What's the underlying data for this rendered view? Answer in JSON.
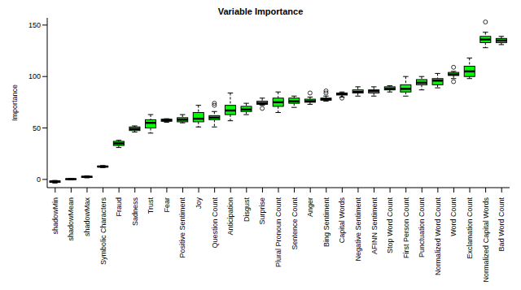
{
  "chart_data": {
    "type": "boxplot",
    "title": "Variable Importance",
    "y_label": "Importance",
    "categories": [
      "shadowMin",
      "shadowMean",
      "shadowMax",
      "Symbolic Characters",
      "Fraud",
      "Sadness",
      "Trust",
      "Fear",
      "Positive Sentiment",
      "Joy",
      "Question Count",
      "Anticipation",
      "Disgust",
      "Surprise",
      "Plural Pronoun Count",
      "Sentence Count",
      "Anger",
      "Bing Sentiment",
      "Capital Words",
      "Negative Sentiment",
      "AFINN Sentiment",
      "Stop Word Count",
      "First Person Count",
      "Punctuation Count",
      "Normalized Word Count",
      "Word Count",
      "Exclamation Count",
      "Normalized Capital Words",
      "Bad Word Count"
    ],
    "boxes": [
      {
        "min": -3.5,
        "q1": -2.8,
        "median": -2,
        "q3": -1.5,
        "max": -1,
        "outliers": []
      },
      {
        "min": -0.3,
        "q1": 0,
        "median": 0.3,
        "q3": 0.6,
        "max": 0.9,
        "outliers": []
      },
      {
        "min": 1.5,
        "q1": 2,
        "median": 2.5,
        "q3": 3,
        "max": 3.5,
        "outliers": []
      },
      {
        "min": 11.5,
        "q1": 12,
        "median": 12.5,
        "q3": 13,
        "max": 13.5,
        "outliers": []
      },
      {
        "min": 31,
        "q1": 33,
        "median": 35,
        "q3": 37,
        "max": 38,
        "outliers": []
      },
      {
        "min": 46,
        "q1": 47.5,
        "median": 49,
        "q3": 51,
        "max": 52,
        "outliers": []
      },
      {
        "min": 45,
        "q1": 50,
        "median": 55,
        "q3": 58,
        "max": 63,
        "outliers": []
      },
      {
        "min": 55.5,
        "q1": 56.5,
        "median": 57.5,
        "q3": 58.5,
        "max": 59,
        "outliers": []
      },
      {
        "min": 55,
        "q1": 56,
        "median": 58,
        "q3": 60,
        "max": 63,
        "outliers": []
      },
      {
        "min": 51,
        "q1": 56,
        "median": 59,
        "q3": 65,
        "max": 72,
        "outliers": []
      },
      {
        "min": 51,
        "q1": 58,
        "median": 60,
        "q3": 62,
        "max": 66,
        "outliers": [
          72,
          74
        ]
      },
      {
        "min": 57,
        "q1": 63,
        "median": 67,
        "q3": 72,
        "max": 84,
        "outliers": []
      },
      {
        "min": 63,
        "q1": 66,
        "median": 68,
        "q3": 71,
        "max": 74,
        "outliers": []
      },
      {
        "min": 72,
        "q1": 73,
        "median": 74,
        "q3": 76,
        "max": 79,
        "outliers": [
          69
        ]
      },
      {
        "min": 65,
        "q1": 71,
        "median": 75,
        "q3": 79,
        "max": 85,
        "outliers": []
      },
      {
        "min": 70,
        "q1": 74,
        "median": 76,
        "q3": 79,
        "max": 81,
        "outliers": []
      },
      {
        "min": 73,
        "q1": 75,
        "median": 76,
        "q3": 78,
        "max": 80,
        "outliers": [
          84
        ]
      },
      {
        "min": 76,
        "q1": 77,
        "median": 78,
        "q3": 79,
        "max": 81,
        "outliers": [
          84,
          86
        ]
      },
      {
        "min": 80,
        "q1": 82,
        "median": 83,
        "q3": 84,
        "max": 85,
        "outliers": [
          79
        ]
      },
      {
        "min": 81,
        "q1": 84,
        "median": 85,
        "q3": 87,
        "max": 90,
        "outliers": []
      },
      {
        "min": 81,
        "q1": 84,
        "median": 86,
        "q3": 87,
        "max": 90,
        "outliers": []
      },
      {
        "min": 85,
        "q1": 87,
        "median": 88,
        "q3": 90,
        "max": 91,
        "outliers": []
      },
      {
        "min": 81,
        "q1": 85,
        "median": 88,
        "q3": 92,
        "max": 100,
        "outliers": []
      },
      {
        "min": 87,
        "q1": 92,
        "median": 94,
        "q3": 97,
        "max": 100,
        "outliers": []
      },
      {
        "min": 89,
        "q1": 92,
        "median": 96,
        "q3": 98,
        "max": 103,
        "outliers": []
      },
      {
        "min": 98,
        "q1": 101,
        "median": 102,
        "q3": 104,
        "max": 105,
        "outliers": [
          95,
          109
        ]
      },
      {
        "min": 98,
        "q1": 100,
        "median": 105,
        "q3": 110,
        "max": 118,
        "outliers": []
      },
      {
        "min": 128,
        "q1": 133,
        "median": 136,
        "q3": 139,
        "max": 143,
        "outliers": [
          153
        ]
      },
      {
        "min": 131,
        "q1": 133,
        "median": 135,
        "q3": 137,
        "max": 139,
        "outliers": []
      }
    ],
    "colors": [
      "#0000ff",
      "#0000ff",
      "#0000ff",
      "#00ff00",
      "#00ff00",
      "#00ff00",
      "#00ff00",
      "#00ff00",
      "#00ff00",
      "#00ff00",
      "#00ff00",
      "#00ff00",
      "#00ff00",
      "#00ff00",
      "#00ff00",
      "#00ff00",
      "#00ff00",
      "#00ff00",
      "#00ff00",
      "#00ff00",
      "#00ff00",
      "#00ff00",
      "#00ff00",
      "#00ff00",
      "#00ff00",
      "#00ff00",
      "#00ff00",
      "#00ff00",
      "#00ff00"
    ],
    "ylim": [
      -8,
      157
    ],
    "yticks": [
      0,
      50,
      100,
      150
    ],
    "grid": false
  }
}
